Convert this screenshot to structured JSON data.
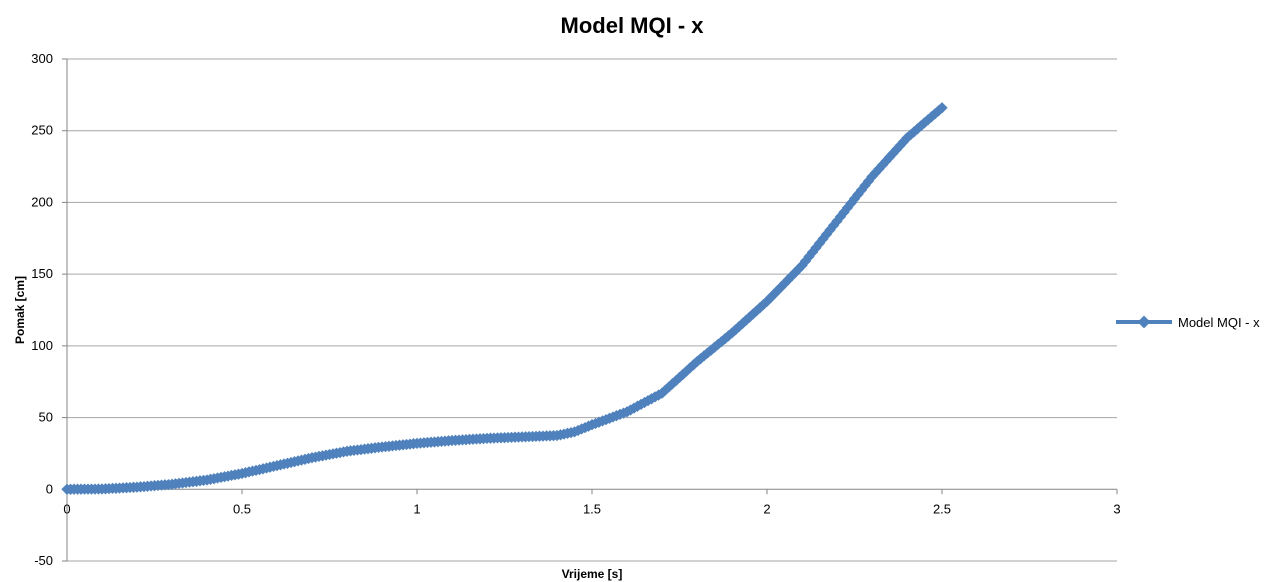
{
  "chart_data": {
    "type": "line",
    "title": "Model MQI - x",
    "xlabel": "Vrijeme [s]",
    "ylabel": "Pomak [cm]",
    "xlim": [
      0,
      3
    ],
    "ylim": [
      -50,
      300
    ],
    "x_ticks": [
      "0",
      "0.5",
      "1",
      "1.5",
      "2",
      "2.5",
      "3"
    ],
    "y_ticks": [
      "300",
      "250",
      "200",
      "150",
      "100",
      "50",
      "0",
      "-50"
    ],
    "grid": true,
    "legend_position": "right",
    "color": "#4f81bd",
    "series": [
      {
        "name": "Model MQI - x",
        "points": [
          [
            0.0,
            0.0
          ],
          [
            0.1,
            0.2
          ],
          [
            0.2,
            1.5
          ],
          [
            0.3,
            3.5
          ],
          [
            0.4,
            6.5
          ],
          [
            0.5,
            11.0
          ],
          [
            0.6,
            16.5
          ],
          [
            0.7,
            22.0
          ],
          [
            0.8,
            26.5
          ],
          [
            0.9,
            29.5
          ],
          [
            1.0,
            32.0
          ],
          [
            1.1,
            34.0
          ],
          [
            1.2,
            35.5
          ],
          [
            1.3,
            36.5
          ],
          [
            1.4,
            37.5
          ],
          [
            1.45,
            40.0
          ],
          [
            1.5,
            45.0
          ],
          [
            1.6,
            54.0
          ],
          [
            1.7,
            67.0
          ],
          [
            1.8,
            89.0
          ],
          [
            1.9,
            109.0
          ],
          [
            2.0,
            131.0
          ],
          [
            2.1,
            156.0
          ],
          [
            2.2,
            187.0
          ],
          [
            2.3,
            218.0
          ],
          [
            2.4,
            245.0
          ],
          [
            2.5,
            266.0
          ]
        ]
      }
    ]
  }
}
